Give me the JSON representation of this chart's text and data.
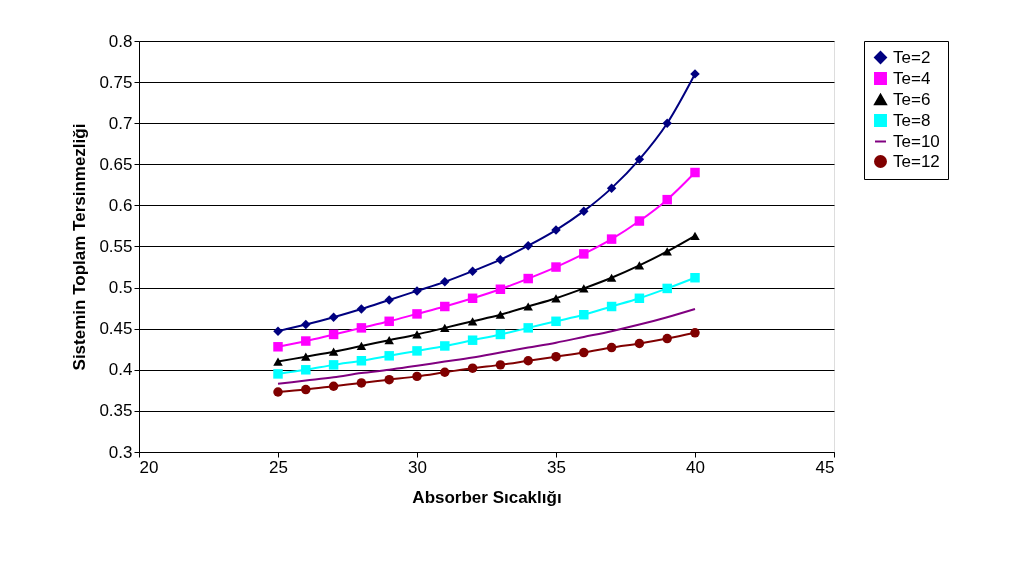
{
  "chart_data": {
    "type": "line",
    "xlabel": "Absorber Sıcaklığı",
    "ylabel": "Sistemin Toplam Tersinmezliği",
    "x": [
      25,
      26,
      27,
      28,
      29,
      30,
      31,
      32,
      33,
      34,
      35,
      36,
      37,
      38,
      39,
      40
    ],
    "xlim": [
      20,
      45
    ],
    "xticks": [
      20,
      25,
      30,
      35,
      40,
      45
    ],
    "ylim": [
      0.3,
      0.8
    ],
    "yticks": [
      0.3,
      0.35,
      0.4,
      0.45,
      0.5,
      0.55,
      0.6,
      0.65,
      0.7,
      0.75,
      0.8
    ],
    "grid": "y",
    "legend": "right",
    "line_style": "solid",
    "series": [
      {
        "name": "Te=2",
        "color": "#000080",
        "marker": "diamond",
        "values": [
          0.447,
          0.455,
          0.464,
          0.474,
          0.485,
          0.496,
          0.507,
          0.52,
          0.534,
          0.551,
          0.57,
          0.593,
          0.621,
          0.656,
          0.7,
          0.76
        ]
      },
      {
        "name": "Te=4",
        "color": "#ff00ff",
        "marker": "square",
        "values": [
          0.428,
          0.435,
          0.443,
          0.451,
          0.459,
          0.468,
          0.477,
          0.487,
          0.498,
          0.511,
          0.525,
          0.541,
          0.559,
          0.581,
          0.607,
          0.64
        ]
      },
      {
        "name": "Te=6",
        "color": "#000000",
        "marker": "triangle",
        "values": [
          0.41,
          0.416,
          0.422,
          0.429,
          0.436,
          0.443,
          0.451,
          0.459,
          0.467,
          0.477,
          0.487,
          0.499,
          0.512,
          0.527,
          0.544,
          0.563
        ]
      },
      {
        "name": "Te=8",
        "color": "#00ffff",
        "marker": "square",
        "values": [
          0.395,
          0.4,
          0.406,
          0.411,
          0.417,
          0.423,
          0.429,
          0.436,
          0.443,
          0.451,
          0.459,
          0.467,
          0.477,
          0.487,
          0.499,
          0.512
        ]
      },
      {
        "name": "Te=10",
        "color": "#800080",
        "marker": "none",
        "values": [
          0.383,
          0.387,
          0.391,
          0.396,
          0.4,
          0.405,
          0.41,
          0.415,
          0.421,
          0.427,
          0.433,
          0.44,
          0.447,
          0.455,
          0.464,
          0.474
        ]
      },
      {
        "name": "Te=12",
        "color": "#800000",
        "marker": "circle",
        "values": [
          0.373,
          0.376,
          0.38,
          0.384,
          0.388,
          0.392,
          0.397,
          0.402,
          0.406,
          0.411,
          0.416,
          0.421,
          0.427,
          0.432,
          0.438,
          0.445
        ]
      }
    ]
  }
}
